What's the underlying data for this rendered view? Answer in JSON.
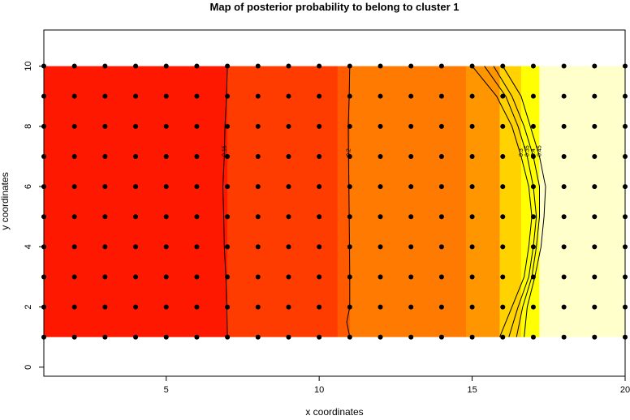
{
  "chart_data": {
    "type": "heatmap",
    "title": "Map of posterior probability to belong to cluster  1",
    "xlabel": "x coordinates",
    "ylabel": "y coordinates",
    "xlim": [
      1,
      20
    ],
    "ylim": [
      -0.3,
      11.2
    ],
    "xticks": [
      5,
      10,
      15,
      20
    ],
    "yticks": [
      0,
      2,
      4,
      6,
      8,
      10
    ],
    "grid": false,
    "legend": "none",
    "field_extent": {
      "x": [
        1,
        20
      ],
      "y": [
        1,
        10
      ]
    },
    "zones": [
      {
        "x_from": 1,
        "x_to": 7.0,
        "color": "#ff1800"
      },
      {
        "x_from": 7.0,
        "x_to": 10.6,
        "color": "#ff3c00"
      },
      {
        "x_from": 10.6,
        "x_to": 11.0,
        "color": "#ff5a00"
      },
      {
        "x_from": 11.0,
        "x_to": 14.8,
        "color": "#ff7a00"
      },
      {
        "x_from": 14.8,
        "x_to": 15.9,
        "color": "#ff9600"
      },
      {
        "x_from": 15.9,
        "x_to": 16.6,
        "color": "#ffd200"
      },
      {
        "x_from": 16.6,
        "x_to": 17.2,
        "color": "#ffff00"
      },
      {
        "x_from": 17.2,
        "x_to": 20,
        "color": "#ffffcc"
      }
    ],
    "contours": [
      {
        "level": "0.15",
        "points": [
          [
            7.0,
            10
          ],
          [
            6.97,
            9
          ],
          [
            6.92,
            8
          ],
          [
            6.9,
            7
          ],
          [
            6.85,
            6
          ],
          [
            6.88,
            5
          ],
          [
            6.9,
            4
          ],
          [
            6.95,
            3
          ],
          [
            6.98,
            2
          ],
          [
            7.0,
            1
          ]
        ]
      },
      {
        "level": "0.2",
        "points": [
          [
            11.0,
            10
          ],
          [
            10.98,
            9
          ],
          [
            10.95,
            8
          ],
          [
            10.96,
            7
          ],
          [
            10.97,
            6
          ],
          [
            10.98,
            5
          ],
          [
            10.99,
            4
          ],
          [
            11.0,
            3
          ],
          [
            11.0,
            2
          ],
          [
            10.9,
            1.5
          ],
          [
            11.0,
            1
          ]
        ]
      },
      {
        "level": "0.3",
        "points": [
          [
            15.0,
            10
          ],
          [
            15.8,
            9
          ],
          [
            16.3,
            8
          ],
          [
            16.6,
            7
          ],
          [
            16.85,
            6
          ],
          [
            16.95,
            5
          ],
          [
            16.85,
            4
          ],
          [
            16.7,
            3
          ],
          [
            16.3,
            2
          ],
          [
            15.9,
            1
          ]
        ]
      },
      {
        "level": "0.35",
        "points": [
          [
            15.4,
            10
          ],
          [
            16.1,
            9
          ],
          [
            16.5,
            8
          ],
          [
            16.8,
            7
          ],
          [
            17.0,
            6
          ],
          [
            17.1,
            5
          ],
          [
            17.0,
            4
          ],
          [
            16.85,
            3
          ],
          [
            16.5,
            2
          ],
          [
            16.2,
            1
          ]
        ]
      },
      {
        "level": "0.4",
        "points": [
          [
            15.7,
            10
          ],
          [
            16.3,
            9
          ],
          [
            16.7,
            8
          ],
          [
            17.0,
            7
          ],
          [
            17.2,
            6
          ],
          [
            17.2,
            5
          ],
          [
            17.1,
            4
          ],
          [
            16.95,
            3
          ],
          [
            16.65,
            2
          ],
          [
            16.45,
            1
          ]
        ]
      },
      {
        "level": "0.45",
        "points": [
          [
            16.0,
            10
          ],
          [
            16.6,
            9
          ],
          [
            16.9,
            8
          ],
          [
            17.2,
            7
          ],
          [
            17.4,
            6
          ],
          [
            17.35,
            5
          ],
          [
            17.25,
            4
          ],
          [
            17.05,
            3
          ],
          [
            16.8,
            2
          ],
          [
            16.7,
            1
          ]
        ]
      }
    ],
    "points_grid": {
      "x": [
        1,
        2,
        3,
        4,
        5,
        6,
        7,
        8,
        9,
        10,
        11,
        12,
        13,
        14,
        15,
        16,
        17,
        18,
        19,
        20
      ],
      "y": [
        1,
        2,
        3,
        4,
        5,
        6,
        7,
        8,
        9,
        10
      ]
    }
  }
}
